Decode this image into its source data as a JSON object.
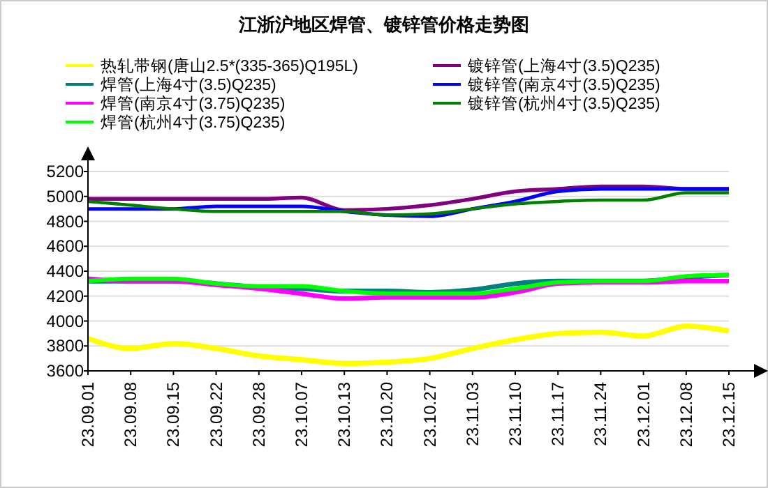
{
  "chart_data": {
    "type": "line",
    "title": "江浙沪地区焊管、镀锌管价格走势图",
    "categories": [
      "23.09.01",
      "23.09.08",
      "23.09.15",
      "23.09.22",
      "23.09.28",
      "23.10.07",
      "23.10.13",
      "23.10.20",
      "23.10.27",
      "23.11.03",
      "23.11.10",
      "23.11.17",
      "23.11.24",
      "23.12.01",
      "23.12.08",
      "23.12.15"
    ],
    "series": [
      {
        "name": "热轧带钢(唐山2.5*(335-365)Q195L)",
        "color": "#ffff00",
        "values": [
          3860,
          3780,
          3820,
          3780,
          3720,
          3690,
          3660,
          3670,
          3700,
          3780,
          3850,
          3900,
          3910,
          3880,
          3960,
          3920
        ]
      },
      {
        "name": "焊管(上海4寸(3.5)Q235)",
        "color": "#008080",
        "values": [
          4320,
          4320,
          4320,
          4300,
          4270,
          4260,
          4240,
          4240,
          4230,
          4250,
          4300,
          4320,
          4320,
          4320,
          4350,
          4370
        ]
      },
      {
        "name": "焊管(南京4寸(3.75)Q235)",
        "color": "#ff00ff",
        "values": [
          4340,
          4320,
          4320,
          4290,
          4260,
          4220,
          4180,
          4190,
          4190,
          4190,
          4230,
          4300,
          4310,
          4310,
          4320,
          4320
        ]
      },
      {
        "name": "焊管(杭州4寸(3.75)Q235)",
        "color": "#00ff00",
        "values": [
          4320,
          4340,
          4340,
          4300,
          4280,
          4280,
          4240,
          4220,
          4220,
          4220,
          4260,
          4310,
          4320,
          4320,
          4360,
          4370
        ]
      },
      {
        "name": "镀锌管(上海4寸(3.5)Q235)",
        "color": "#800080",
        "values": [
          4980,
          4980,
          4980,
          4980,
          4980,
          4990,
          4890,
          4900,
          4930,
          4980,
          5040,
          5060,
          5080,
          5080,
          5060,
          5060
        ]
      },
      {
        "name": "镀锌管(南京4寸(3.5)Q235)",
        "color": "#0000ff",
        "values": [
          4900,
          4900,
          4900,
          4920,
          4920,
          4920,
          4880,
          4850,
          4840,
          4900,
          4960,
          5040,
          5060,
          5060,
          5060,
          5060
        ]
      },
      {
        "name": "镀锌管(杭州4寸(3.5)Q235)",
        "color": "#008000",
        "values": [
          4960,
          4930,
          4900,
          4880,
          4880,
          4880,
          4880,
          4850,
          4860,
          4900,
          4940,
          4960,
          4970,
          4970,
          5030,
          5030
        ]
      }
    ],
    "ylim": [
      3600,
      5200
    ],
    "yticks": [
      3600,
      3800,
      4000,
      4200,
      4400,
      4600,
      4800,
      5000,
      5200
    ],
    "grid": "y",
    "legend": "top"
  }
}
